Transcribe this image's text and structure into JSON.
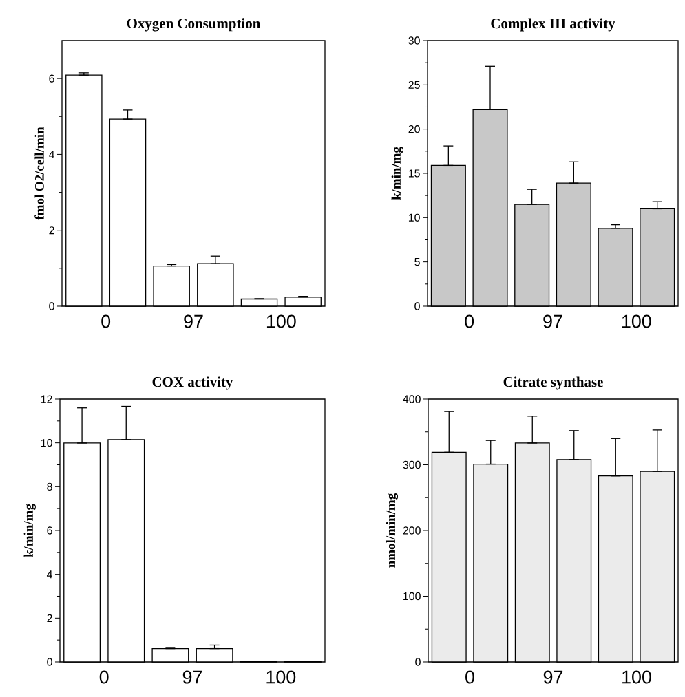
{
  "chart_data": [
    {
      "type": "bar",
      "title": "Oxygen Consumption",
      "ylabel": "fmol O2/cell/min",
      "categories": [
        "0",
        "97",
        "100"
      ],
      "ylim": [
        0,
        7
      ],
      "yticks": [
        0,
        2,
        4,
        6
      ],
      "series": [
        {
          "color": "#ffffff",
          "values": [
            6.09,
            1.06,
            0.19
          ],
          "errors": [
            [
              6.09,
              6.15
            ],
            [
              1.06,
              1.1
            ],
            [
              0.19,
              0.2
            ]
          ]
        },
        {
          "color": "#ffffff",
          "values": [
            4.93,
            1.12,
            0.24
          ],
          "errors": [
            [
              4.93,
              5.17
            ],
            [
              1.12,
              1.32
            ],
            [
              0.24,
              0.26
            ]
          ]
        }
      ]
    },
    {
      "type": "bar",
      "title": "Complex III activity",
      "ylabel": "k/min/mg",
      "categories": [
        "0",
        "97",
        "100"
      ],
      "ylim": [
        0,
        30
      ],
      "yticks": [
        0,
        5,
        10,
        15,
        20,
        25,
        30
      ],
      "series": [
        {
          "color": "#c8c8c8",
          "values": [
            15.9,
            11.5,
            8.8
          ],
          "errors": [
            [
              15.9,
              18.1
            ],
            [
              11.5,
              13.2
            ],
            [
              8.8,
              9.2
            ]
          ]
        },
        {
          "color": "#c8c8c8",
          "values": [
            22.2,
            13.9,
            11.0
          ],
          "errors": [
            [
              22.2,
              27.1
            ],
            [
              13.9,
              16.3
            ],
            [
              11.0,
              11.8
            ]
          ]
        }
      ]
    },
    {
      "type": "bar",
      "title": "COX activity",
      "ylabel": "k/min/mg",
      "categories": [
        "0",
        "97",
        "100"
      ],
      "ylim": [
        0,
        12
      ],
      "yticks": [
        0,
        2,
        4,
        6,
        8,
        10,
        12
      ],
      "series": [
        {
          "color": "#ffffff",
          "values": [
            9.99,
            0.61,
            0.03
          ],
          "errors": [
            [
              9.99,
              11.6
            ],
            [
              0.61,
              0.63
            ],
            null
          ]
        },
        {
          "color": "#ffffff",
          "values": [
            10.15,
            0.61,
            0.03
          ],
          "errors": [
            [
              10.15,
              11.67
            ],
            [
              0.61,
              0.77
            ],
            null
          ]
        }
      ]
    },
    {
      "type": "bar",
      "title": "Citrate synthase",
      "ylabel": "nmol/min/mg",
      "categories": [
        "0",
        "97",
        "100"
      ],
      "ylim": [
        0,
        400
      ],
      "yticks": [
        0,
        100,
        200,
        300,
        400
      ],
      "series": [
        {
          "color": "#ebebeb",
          "values": [
            319,
            333,
            283
          ],
          "errors": [
            [
              319,
              381
            ],
            [
              333,
              374
            ],
            [
              283,
              340
            ]
          ]
        },
        {
          "color": "#ebebeb",
          "values": [
            301,
            308,
            290
          ],
          "errors": [
            [
              301,
              337
            ],
            [
              308,
              352
            ],
            [
              290,
              353
            ]
          ]
        }
      ]
    }
  ]
}
